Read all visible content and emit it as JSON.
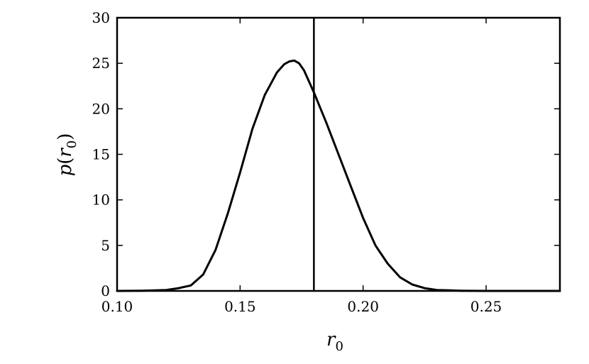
{
  "chart_data": {
    "type": "line",
    "title": "",
    "xlabel": {
      "main": "r",
      "sub": "0"
    },
    "ylabel": {
      "prefix": "p",
      "main": "r",
      "sub": "0"
    },
    "xlim": [
      0.1,
      0.28
    ],
    "ylim": [
      0,
      30
    ],
    "xticks": [
      {
        "value": 0.1,
        "label": "0.10"
      },
      {
        "value": 0.15,
        "label": "0.15"
      },
      {
        "value": 0.2,
        "label": "0.20"
      },
      {
        "value": 0.25,
        "label": "0.25"
      }
    ],
    "yticks": [
      {
        "value": 0,
        "label": "0"
      },
      {
        "value": 5,
        "label": "5"
      },
      {
        "value": 10,
        "label": "10"
      },
      {
        "value": 15,
        "label": "15"
      },
      {
        "value": 20,
        "label": "20"
      },
      {
        "value": 25,
        "label": "25"
      },
      {
        "value": 30,
        "label": "30"
      }
    ],
    "grid": false,
    "vline_x": 0.18,
    "series": [
      {
        "color": "#000000",
        "x": [
          0.1,
          0.11,
          0.12,
          0.125,
          0.13,
          0.135,
          0.14,
          0.145,
          0.15,
          0.155,
          0.16,
          0.165,
          0.168,
          0.17,
          0.172,
          0.174,
          0.176,
          0.178,
          0.18,
          0.185,
          0.19,
          0.195,
          0.2,
          0.205,
          0.21,
          0.215,
          0.22,
          0.225,
          0.23,
          0.24,
          0.25,
          0.26,
          0.28
        ],
        "y": [
          0,
          0.02,
          0.1,
          0.3,
          0.6,
          1.8,
          4.5,
          8.5,
          13.0,
          17.8,
          21.5,
          24.0,
          24.9,
          25.2,
          25.3,
          25.0,
          24.2,
          23.0,
          21.8,
          18.5,
          15.0,
          11.5,
          8.0,
          5.0,
          3.0,
          1.5,
          0.7,
          0.3,
          0.1,
          0.02,
          0,
          0,
          0
        ]
      }
    ]
  }
}
